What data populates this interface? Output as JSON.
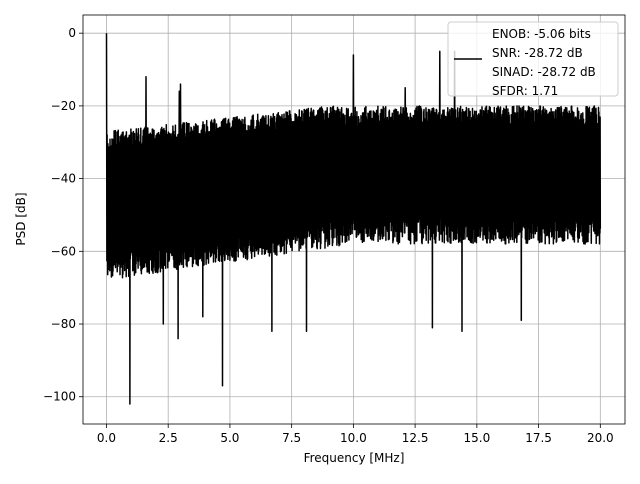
{
  "chart_data": {
    "type": "line",
    "title": "",
    "xlabel": "Frequency [MHz]",
    "ylabel": "PSD [dB]",
    "xlim": [
      -0.95,
      21.0
    ],
    "ylim": [
      -107.5,
      5
    ],
    "xticks": [
      0,
      2.5,
      5,
      7.5,
      10,
      12.5,
      15,
      17.5,
      20
    ],
    "xtick_labels": [
      "0.0",
      "2.5",
      "5.0",
      "7.5",
      "10.0",
      "12.5",
      "15.0",
      "17.5",
      "20.0"
    ],
    "yticks": [
      0,
      -20,
      -40,
      -60,
      -80,
      -100
    ],
    "ytick_labels": [
      "0",
      "−20",
      "−40",
      "−60",
      "−80",
      "−100"
    ],
    "grid": true,
    "legend_position": "top-right",
    "series": [
      {
        "name": "ENOB: -5.06 bits\nSNR: -28.72 dB\nSINAD: -28.72 dB\nSFDR: 1.71",
        "color": "#000000",
        "x_range": [
          0,
          20
        ],
        "noise_band_upper_dB": [
          -27,
          -20
        ],
        "noise_band_lower_dB": [
          -68,
          -58
        ],
        "peaks": [
          [
            0.0,
            0
          ],
          [
            1.6,
            -12
          ],
          [
            2.95,
            -16
          ],
          [
            10.0,
            -6
          ],
          [
            12.1,
            -15
          ],
          [
            13.5,
            -5
          ],
          [
            14.1,
            -5
          ],
          [
            3.0,
            -14
          ]
        ],
        "dips": [
          [
            0.95,
            -102
          ],
          [
            4.7,
            -97
          ],
          [
            2.9,
            -84
          ],
          [
            2.3,
            -80
          ],
          [
            6.7,
            -82
          ],
          [
            8.1,
            -82
          ],
          [
            13.2,
            -81
          ],
          [
            14.4,
            -82
          ],
          [
            3.9,
            -78
          ],
          [
            16.8,
            -79
          ]
        ]
      }
    ]
  }
}
